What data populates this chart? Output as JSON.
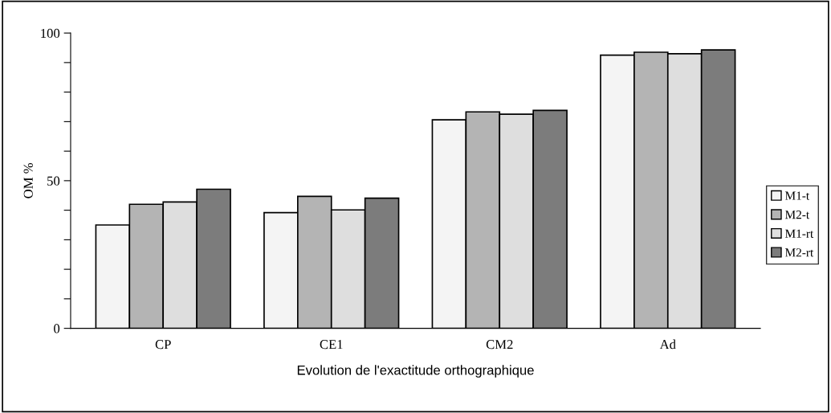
{
  "chart_data": {
    "type": "bar",
    "xlabel": "Evolution de l'exactitude orthographique",
    "ylabel": "OM %",
    "categories": [
      "CP",
      "CE1",
      "CM2",
      "Ad"
    ],
    "series": [
      {
        "name": "M1-t",
        "color": "#f4f4f4",
        "values": [
          35,
          39.2,
          70.6,
          92.5
        ]
      },
      {
        "name": "M2-t",
        "color": "#b4b4b4",
        "values": [
          42,
          44.7,
          73.3,
          93.5
        ]
      },
      {
        "name": "M1-rt",
        "color": "#dedede",
        "values": [
          42.8,
          40.1,
          72.5,
          93
        ]
      },
      {
        "name": "M2-rt",
        "color": "#7c7c7c",
        "values": [
          47.1,
          44.1,
          73.8,
          94.3
        ]
      }
    ],
    "ylim": [
      0,
      100
    ],
    "yticks": [
      0,
      {
        "value": 10,
        "label": null
      },
      {
        "value": 20,
        "label": null
      },
      {
        "value": 30,
        "label": null
      },
      {
        "value": 40,
        "label": null
      },
      50,
      {
        "value": 60,
        "label": null
      },
      {
        "value": 70,
        "label": null
      },
      {
        "value": 80,
        "label": null
      },
      {
        "value": 90,
        "label": null
      },
      100
    ],
    "grid": false,
    "legend": "right"
  }
}
